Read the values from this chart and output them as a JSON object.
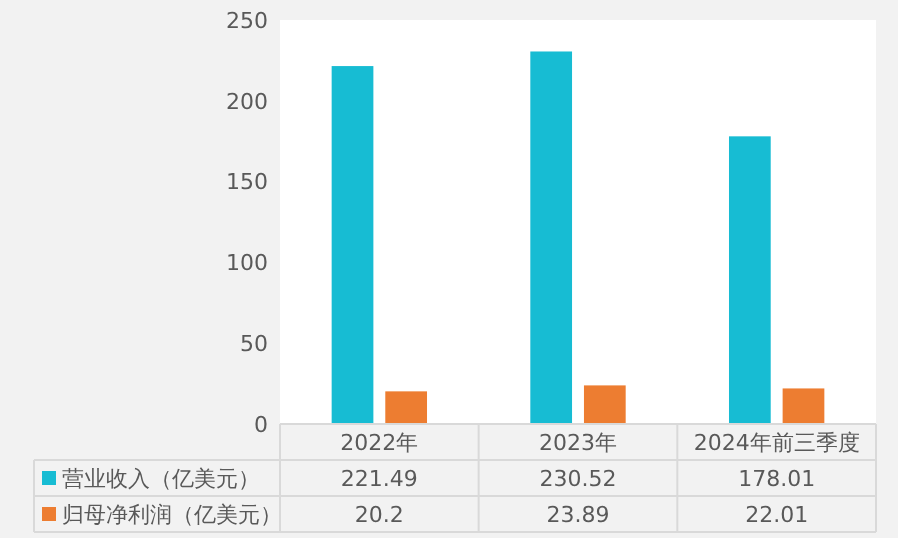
{
  "chart_data": {
    "type": "bar",
    "categories": [
      "2022年",
      "2023年",
      "2024年前三季度"
    ],
    "series": [
      {
        "name": "营业收入（亿美元）",
        "color": "#17bcd3",
        "values": [
          221.49,
          230.52,
          178.01
        ]
      },
      {
        "name": "归母净利润（亿美元）",
        "color": "#ed7d31",
        "values": [
          20.2,
          23.89,
          22.01
        ]
      }
    ],
    "ylim": [
      0,
      250
    ],
    "yticks": [
      0,
      50,
      100,
      150,
      200,
      250
    ],
    "grid": false,
    "legend": "bottom",
    "data_labels": true
  }
}
